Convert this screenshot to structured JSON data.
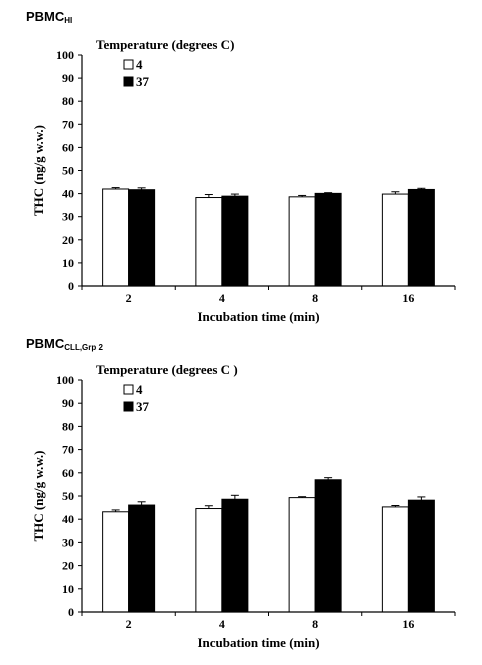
{
  "chart_data": [
    {
      "type": "bar",
      "title": "PBMC",
      "title_subscript": "HI",
      "categories": [
        "2",
        "4",
        "8",
        "16"
      ],
      "series": [
        {
          "name": "4",
          "values": [
            42.0,
            38.3,
            38.6,
            39.8
          ],
          "errors": [
            0.6,
            1.3,
            0.6,
            1.0
          ],
          "color": "#ffffff"
        },
        {
          "name": "37",
          "values": [
            41.7,
            38.9,
            40.1,
            41.8
          ],
          "errors": [
            0.8,
            0.9,
            0.3,
            0.5
          ],
          "color": "#000000"
        }
      ],
      "xlabel": "Incubation time (min)",
      "ylabel": "THC (ng/g w.w.)",
      "ylim": [
        0,
        100
      ],
      "yticks": [
        "0",
        "10",
        "20",
        "30",
        "40",
        "50",
        "60",
        "70",
        "80",
        "90",
        "100"
      ],
      "legend_title": "Temperature (degrees C)",
      "legend_position": "top-left",
      "grid": false
    },
    {
      "type": "bar",
      "title": "PBMC",
      "title_subscript": "CLL,Grp 2",
      "categories": [
        "2",
        "4",
        "8",
        "16"
      ],
      "series": [
        {
          "name": "4",
          "values": [
            43.2,
            44.6,
            49.3,
            45.3
          ],
          "errors": [
            0.8,
            1.2,
            0.4,
            0.6
          ],
          "color": "#ffffff"
        },
        {
          "name": "37",
          "values": [
            46.1,
            48.6,
            57.0,
            48.2
          ],
          "errors": [
            1.4,
            1.7,
            0.9,
            1.4
          ],
          "color": "#000000"
        }
      ],
      "xlabel": "Incubation time (min)",
      "ylabel": "THC (ng/g w.w.)",
      "ylim": [
        0,
        100
      ],
      "yticks": [
        "0",
        "10",
        "20",
        "30",
        "40",
        "50",
        "60",
        "70",
        "80",
        "90",
        "100"
      ],
      "legend_title": "Temperature (degrees C )",
      "legend_position": "top-left",
      "grid": false
    }
  ]
}
